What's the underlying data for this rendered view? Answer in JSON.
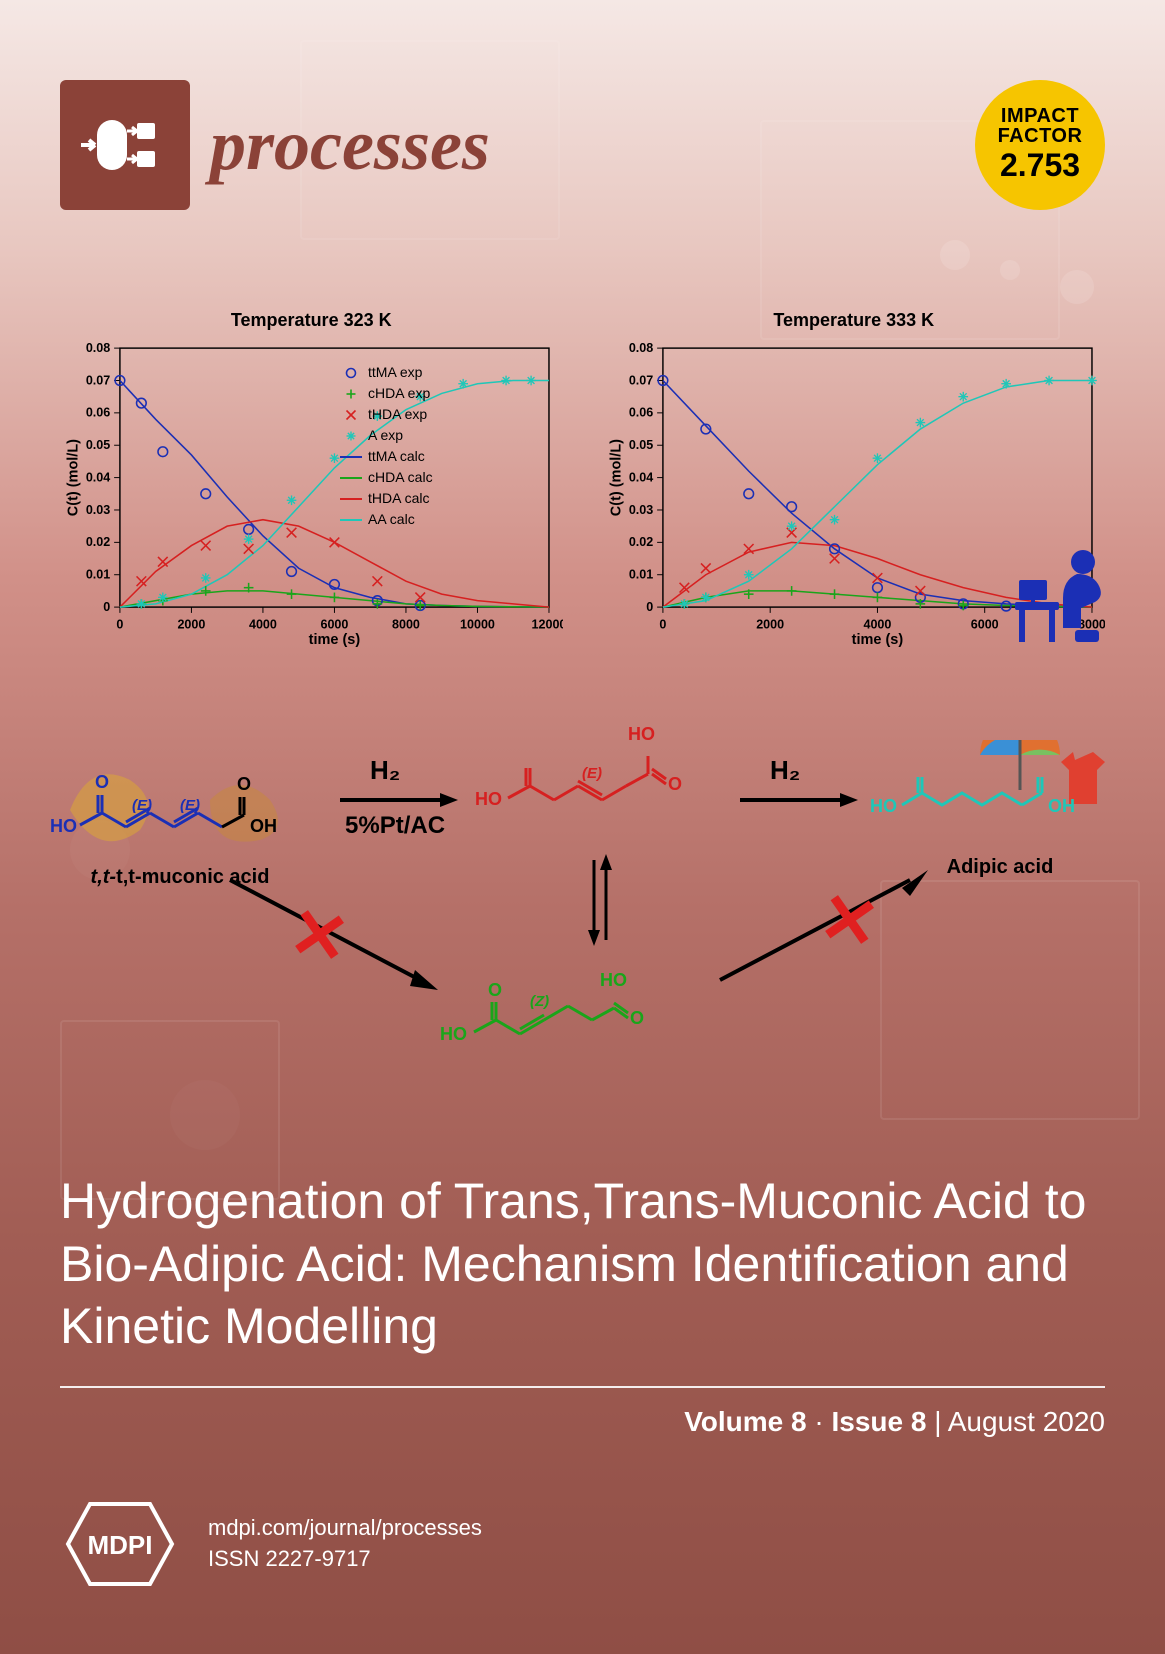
{
  "journal": {
    "name": "processes",
    "name_color": "#8b4238",
    "logo_bg": "#8b4238",
    "impact": {
      "l1": "IMPACT",
      "l2": "FACTOR",
      "value": "2.753",
      "bg": "#f6c500"
    }
  },
  "colors": {
    "ttMA": "#1b2fb5",
    "cHDA": "#1aa51a",
    "tHDA": "#d62020",
    "AA": "#1fc7b8",
    "axis": "#000000",
    "grid": "#bbbbbb",
    "person": "#1b2fb5"
  },
  "charts": {
    "common": {
      "ylabel": "C(t)  (mol/L)",
      "xlabel": "time (s)",
      "ylim": [
        0,
        0.08
      ],
      "ytick_step": 0.01,
      "axis_fontsize": 13,
      "title_fontsize": 18,
      "marker_size": 5,
      "line_width": 1.6
    },
    "left": {
      "title": "Temperature 323 K",
      "xlim": [
        0,
        12000
      ],
      "xtick_step": 2000,
      "legend": [
        {
          "key": "ttMA_exp",
          "label": "ttMA exp",
          "type": "marker",
          "shape": "o",
          "color": "#1b2fb5"
        },
        {
          "key": "cHDA_exp",
          "label": "cHDA exp",
          "type": "marker",
          "shape": "+",
          "color": "#1aa51a"
        },
        {
          "key": "tHDA_exp",
          "label": "tHDA exp",
          "type": "marker",
          "shape": "x",
          "color": "#d62020"
        },
        {
          "key": "A_exp",
          "label": "A exp",
          "type": "marker",
          "shape": "*",
          "color": "#1fc7b8"
        },
        {
          "key": "ttMA_calc",
          "label": "ttMA calc",
          "type": "line",
          "color": "#1b2fb5"
        },
        {
          "key": "cHDA_calc",
          "label": "cHDA calc",
          "type": "line",
          "color": "#1aa51a"
        },
        {
          "key": "tHDA_calc",
          "label": "tHDA calc",
          "type": "line",
          "color": "#d62020"
        },
        {
          "key": "AA_calc",
          "label": "AA calc",
          "type": "line",
          "color": "#1fc7b8"
        }
      ],
      "series": {
        "ttMA_calc": [
          [
            0,
            0.07
          ],
          [
            1000,
            0.058
          ],
          [
            2000,
            0.047
          ],
          [
            3000,
            0.034
          ],
          [
            4000,
            0.022
          ],
          [
            5000,
            0.012
          ],
          [
            6000,
            0.006
          ],
          [
            7000,
            0.003
          ],
          [
            8000,
            0.001
          ],
          [
            9000,
            0.0005
          ],
          [
            10000,
            0.0002
          ],
          [
            11000,
            0.0001
          ],
          [
            12000,
            0
          ]
        ],
        "cHDA_calc": [
          [
            0,
            0
          ],
          [
            1000,
            0.002
          ],
          [
            2000,
            0.004
          ],
          [
            3000,
            0.005
          ],
          [
            4000,
            0.005
          ],
          [
            5000,
            0.004
          ],
          [
            6000,
            0.003
          ],
          [
            7000,
            0.002
          ],
          [
            8000,
            0.001
          ],
          [
            9000,
            0.0005
          ],
          [
            10000,
            0.0002
          ],
          [
            11000,
            0.0001
          ],
          [
            12000,
            0
          ]
        ],
        "tHDA_calc": [
          [
            0,
            0
          ],
          [
            1000,
            0.011
          ],
          [
            2000,
            0.019
          ],
          [
            3000,
            0.025
          ],
          [
            4000,
            0.027
          ],
          [
            5000,
            0.025
          ],
          [
            6000,
            0.02
          ],
          [
            7000,
            0.014
          ],
          [
            8000,
            0.008
          ],
          [
            9000,
            0.004
          ],
          [
            10000,
            0.002
          ],
          [
            11000,
            0.001
          ],
          [
            12000,
            0
          ]
        ],
        "AA_calc": [
          [
            0,
            0
          ],
          [
            1000,
            0.001
          ],
          [
            2000,
            0.004
          ],
          [
            3000,
            0.01
          ],
          [
            4000,
            0.019
          ],
          [
            5000,
            0.031
          ],
          [
            6000,
            0.043
          ],
          [
            7000,
            0.053
          ],
          [
            8000,
            0.061
          ],
          [
            9000,
            0.066
          ],
          [
            10000,
            0.069
          ],
          [
            11000,
            0.07
          ],
          [
            12000,
            0.07
          ]
        ],
        "ttMA_exp": [
          [
            0,
            0.07
          ],
          [
            600,
            0.063
          ],
          [
            1200,
            0.048
          ],
          [
            2400,
            0.035
          ],
          [
            3600,
            0.024
          ],
          [
            4800,
            0.011
          ],
          [
            6000,
            0.007
          ],
          [
            7200,
            0.002
          ],
          [
            8400,
            0.0005
          ]
        ],
        "cHDA_exp": [
          [
            600,
            0.001
          ],
          [
            1200,
            0.002
          ],
          [
            2400,
            0.005
          ],
          [
            3600,
            0.006
          ],
          [
            4800,
            0.004
          ],
          [
            6000,
            0.003
          ],
          [
            7200,
            0.001
          ],
          [
            8400,
            0.0005
          ]
        ],
        "tHDA_exp": [
          [
            600,
            0.008
          ],
          [
            1200,
            0.014
          ],
          [
            2400,
            0.019
          ],
          [
            3600,
            0.018
          ],
          [
            4800,
            0.023
          ],
          [
            6000,
            0.02
          ],
          [
            7200,
            0.008
          ],
          [
            8400,
            0.003
          ]
        ],
        "A_exp": [
          [
            600,
            0.001
          ],
          [
            1200,
            0.003
          ],
          [
            2400,
            0.009
          ],
          [
            3600,
            0.021
          ],
          [
            4800,
            0.033
          ],
          [
            6000,
            0.046
          ],
          [
            7200,
            0.059
          ],
          [
            8400,
            0.065
          ],
          [
            9600,
            0.069
          ],
          [
            10800,
            0.07
          ],
          [
            11500,
            0.07
          ]
        ]
      }
    },
    "right": {
      "title": "Temperature 333 K",
      "xlim": [
        0,
        8000
      ],
      "xtick_step": 2000,
      "series": {
        "ttMA_calc": [
          [
            0,
            0.07
          ],
          [
            800,
            0.056
          ],
          [
            1600,
            0.042
          ],
          [
            2400,
            0.029
          ],
          [
            3200,
            0.018
          ],
          [
            4000,
            0.009
          ],
          [
            4800,
            0.004
          ],
          [
            5600,
            0.002
          ],
          [
            6400,
            0.001
          ],
          [
            7200,
            0.0003
          ],
          [
            8000,
            0
          ]
        ],
        "cHDA_calc": [
          [
            0,
            0
          ],
          [
            800,
            0.003
          ],
          [
            1600,
            0.005
          ],
          [
            2400,
            0.005
          ],
          [
            3200,
            0.004
          ],
          [
            4000,
            0.003
          ],
          [
            4800,
            0.002
          ],
          [
            5600,
            0.001
          ],
          [
            6400,
            0.0005
          ],
          [
            7200,
            0.0002
          ],
          [
            8000,
            0
          ]
        ],
        "tHDA_calc": [
          [
            0,
            0
          ],
          [
            800,
            0.01
          ],
          [
            1600,
            0.017
          ],
          [
            2400,
            0.02
          ],
          [
            3200,
            0.019
          ],
          [
            4000,
            0.015
          ],
          [
            4800,
            0.01
          ],
          [
            5600,
            0.006
          ],
          [
            6400,
            0.003
          ],
          [
            7200,
            0.001
          ],
          [
            8000,
            0
          ]
        ],
        "AA_calc": [
          [
            0,
            0
          ],
          [
            800,
            0.002
          ],
          [
            1600,
            0.008
          ],
          [
            2400,
            0.018
          ],
          [
            3200,
            0.031
          ],
          [
            4000,
            0.044
          ],
          [
            4800,
            0.055
          ],
          [
            5600,
            0.063
          ],
          [
            6400,
            0.068
          ],
          [
            7200,
            0.07
          ],
          [
            8000,
            0.07
          ]
        ],
        "ttMA_exp": [
          [
            0,
            0.07
          ],
          [
            800,
            0.055
          ],
          [
            1600,
            0.035
          ],
          [
            2400,
            0.031
          ],
          [
            3200,
            0.018
          ],
          [
            4000,
            0.006
          ],
          [
            4800,
            0.003
          ],
          [
            5600,
            0.001
          ],
          [
            6400,
            0.0003
          ]
        ],
        "cHDA_exp": [
          [
            400,
            0.001
          ],
          [
            800,
            0.003
          ],
          [
            1600,
            0.004
          ],
          [
            2400,
            0.005
          ],
          [
            3200,
            0.004
          ],
          [
            4000,
            0.003
          ],
          [
            4800,
            0.001
          ],
          [
            5600,
            0.0005
          ]
        ],
        "tHDA_exp": [
          [
            400,
            0.006
          ],
          [
            800,
            0.012
          ],
          [
            1600,
            0.018
          ],
          [
            2400,
            0.023
          ],
          [
            3200,
            0.015
          ],
          [
            4000,
            0.009
          ],
          [
            4800,
            0.005
          ]
        ],
        "A_exp": [
          [
            400,
            0.001
          ],
          [
            800,
            0.003
          ],
          [
            1600,
            0.01
          ],
          [
            2400,
            0.025
          ],
          [
            3200,
            0.027
          ],
          [
            4000,
            0.046
          ],
          [
            4800,
            0.057
          ],
          [
            5600,
            0.065
          ],
          [
            6400,
            0.069
          ],
          [
            7200,
            0.07
          ],
          [
            8000,
            0.07
          ]
        ]
      }
    }
  },
  "scheme": {
    "species": {
      "ttMA": {
        "label": "t,t-muconic acid",
        "label_color": "#000",
        "mol_color": "#1b2fb5",
        "e_tag": "(E)"
      },
      "tHDA": {
        "mol_color": "#d62020",
        "e_tag": "(E)"
      },
      "cHDA": {
        "mol_color": "#1aa51a",
        "z_tag": "(Z)"
      },
      "AA": {
        "label": "Adipic acid",
        "label_color": "#000",
        "mol_color": "#1fc7b8"
      }
    },
    "arrow_labels": {
      "h2": "H₂",
      "catalyst": "5%Pt/AC"
    },
    "cross_color": "#e02020"
  },
  "article": {
    "title": "Hydrogenation of Trans,Trans-Muconic Acid to Bio-Adipic Acid: Mechanism Identification and Kinetic Modelling",
    "issue_html": {
      "volume": "Volume 8",
      "issue": "Issue 8",
      "date": "August 2020",
      "sep": " · ",
      "bar": " | "
    }
  },
  "footer": {
    "publisher": "MDPI",
    "url": "mdpi.com/journal/processes",
    "issn": "ISSN 2227-9717"
  }
}
